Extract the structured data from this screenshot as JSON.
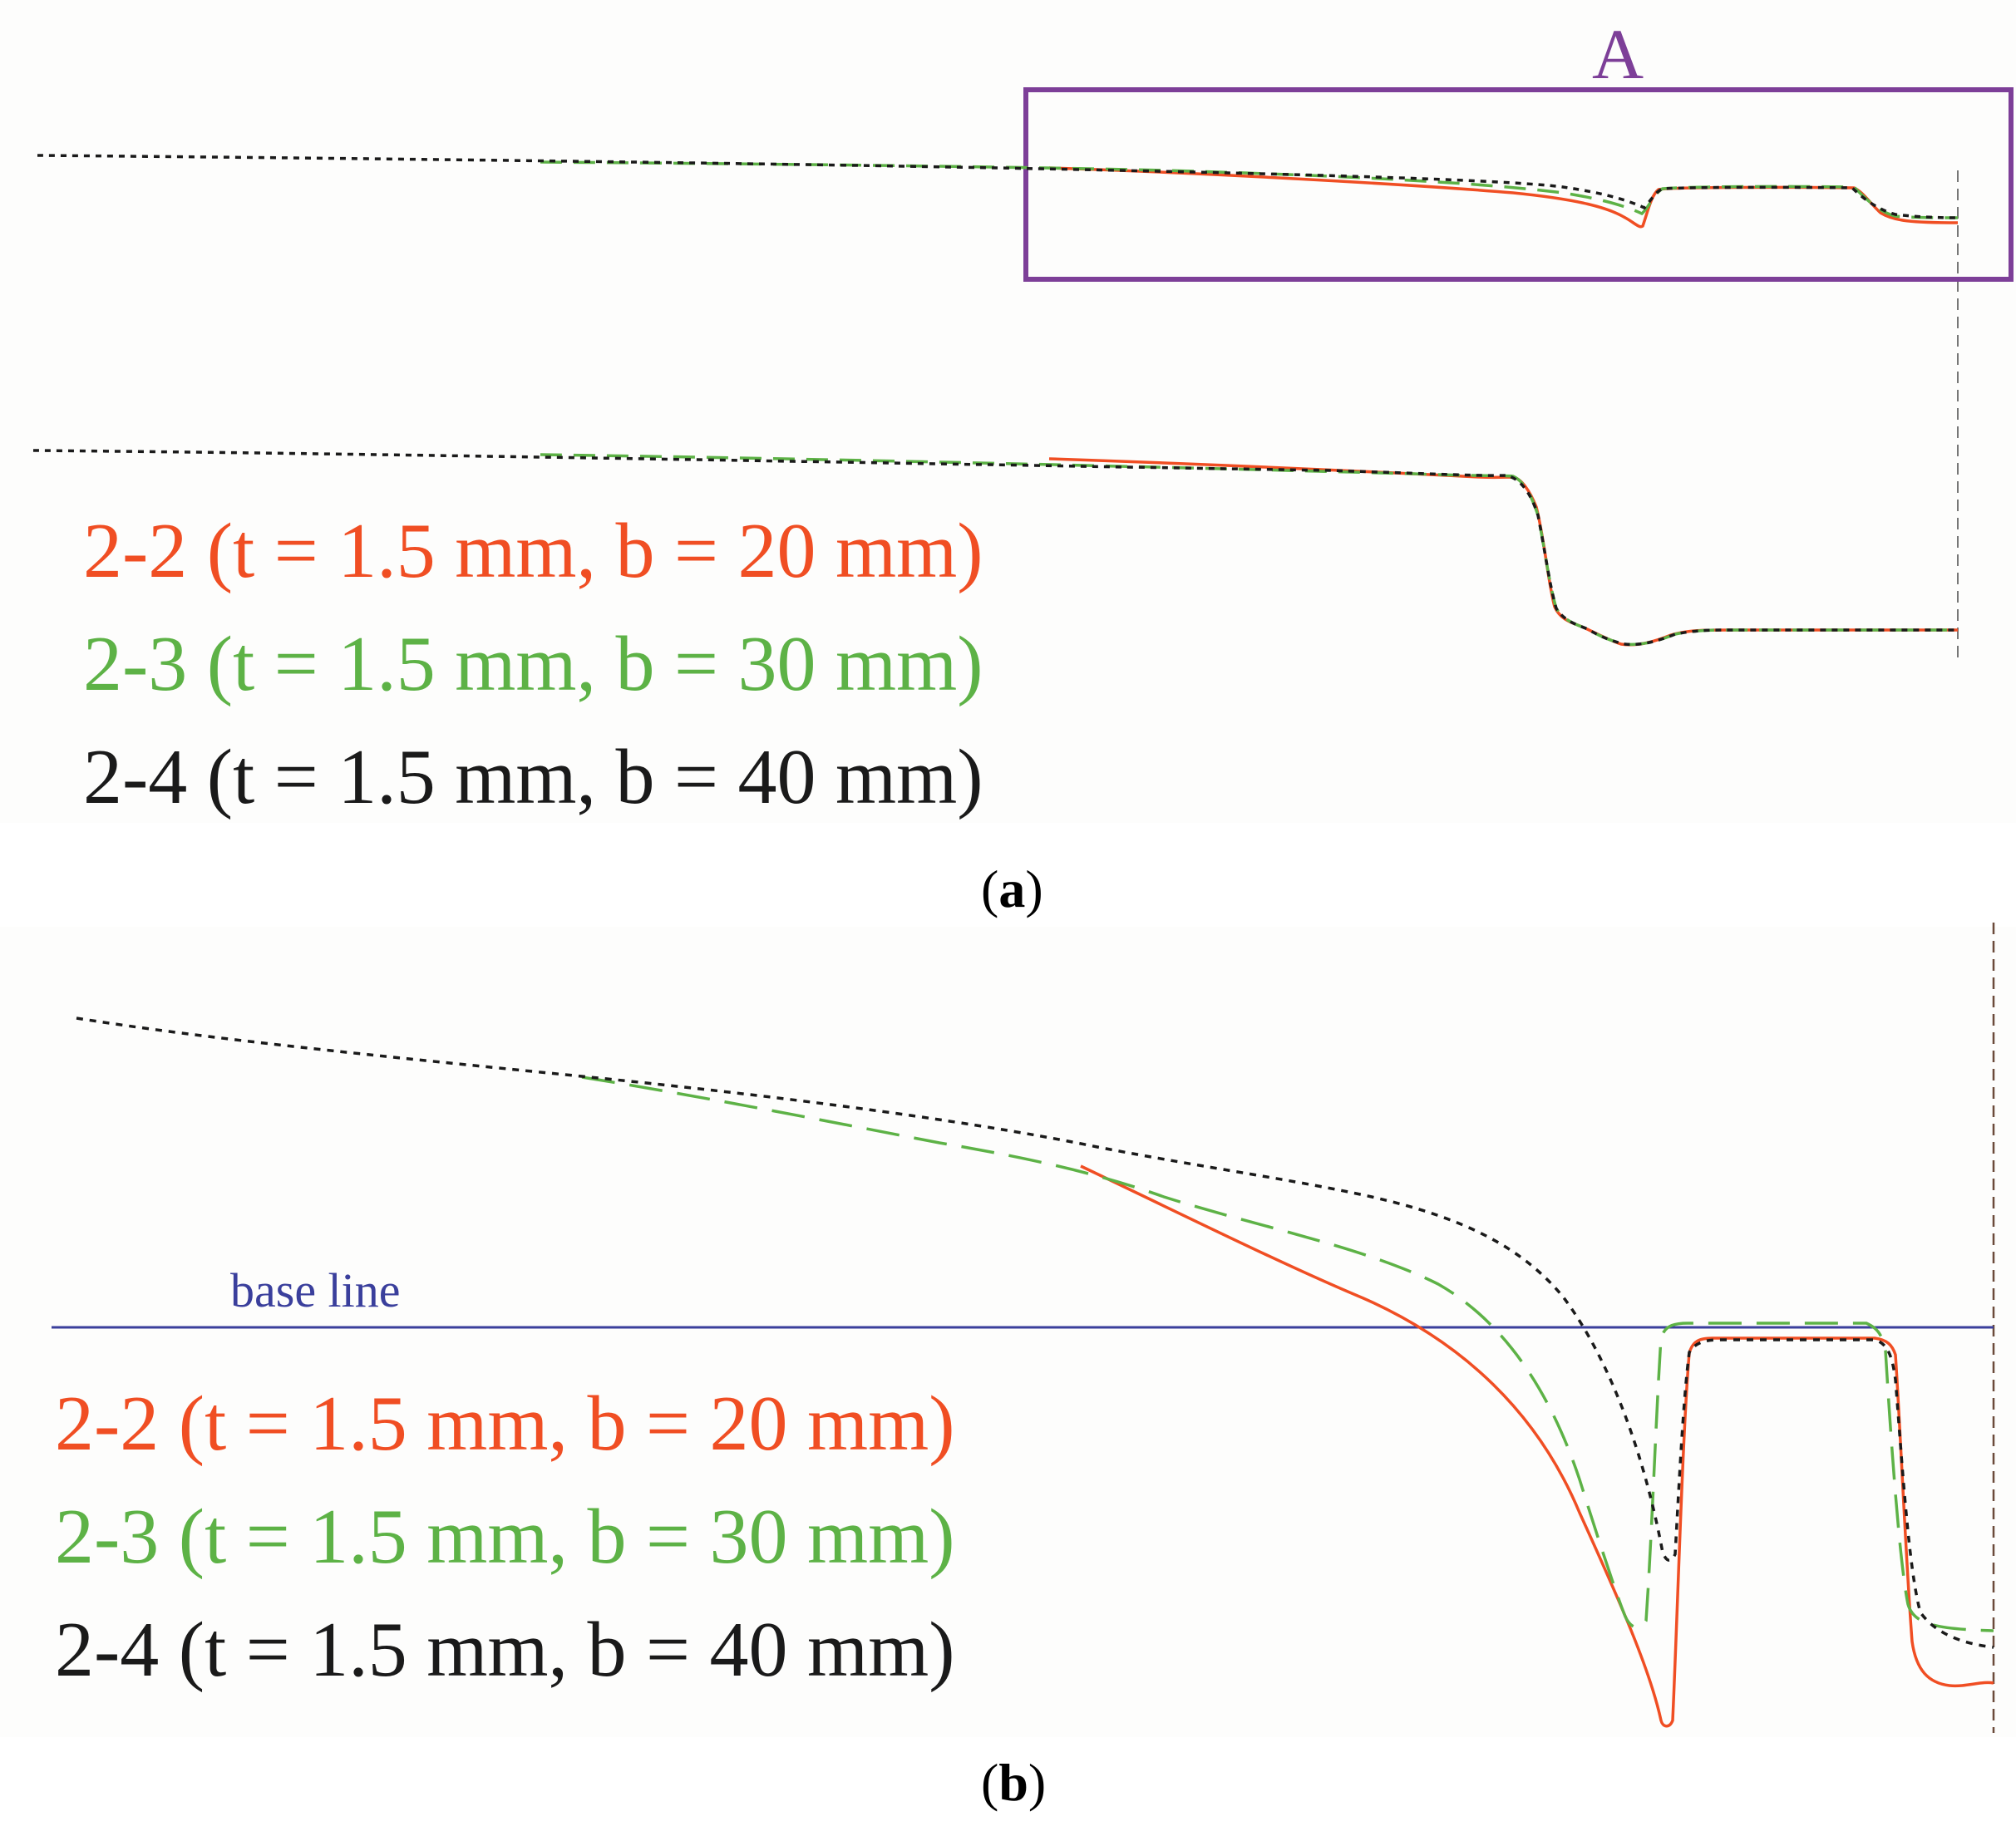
{
  "colors": {
    "series_2_2": "#f04e23",
    "series_2_3": "#5db246",
    "series_2_4": "#1a1a1a",
    "box": "#7d3f98",
    "baseline": "#3a3f9c",
    "guide": "#777777"
  },
  "panel_a": {
    "caption_label": "a",
    "box_label": "A",
    "legend": [
      {
        "text": "2-2 (t = 1.5 mm, b = 20 mm)",
        "series": "2-2",
        "style": "solid"
      },
      {
        "text": "2-3 (t = 1.5 mm, b = 30 mm)",
        "series": "2-3",
        "style": "dashed"
      },
      {
        "text": "2-4 (t = 1.5 mm, b = 40 mm)",
        "series": "2-4",
        "style": "dotted"
      }
    ]
  },
  "panel_b": {
    "caption_label": "b",
    "baseline_label": "base line",
    "legend": [
      {
        "text": "2-2 (t = 1.5 mm, b = 20 mm)",
        "series": "2-2",
        "style": "solid"
      },
      {
        "text": "2-3 (t = 1.5 mm, b = 30 mm)",
        "series": "2-3",
        "style": "dashed"
      },
      {
        "text": "2-4 (t = 1.5 mm, b = 40 mm)",
        "series": "2-4",
        "style": "dotted"
      }
    ]
  }
}
